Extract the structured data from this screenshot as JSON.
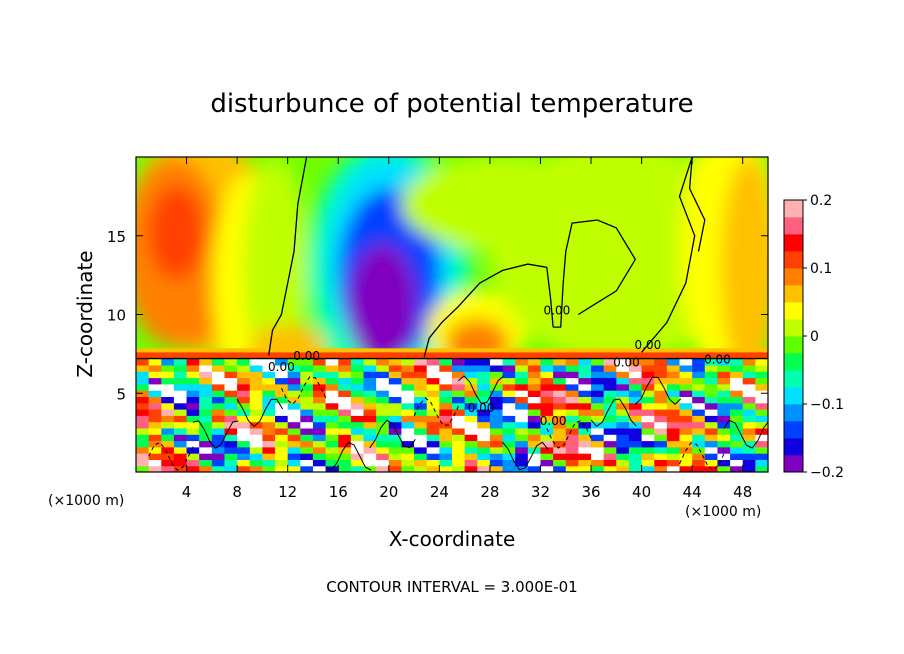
{
  "chart_data": {
    "type": "heatmap",
    "title": "disturbunce of potential temperature",
    "xlabel": "X-coordinate",
    "ylabel": "Z-coordinate",
    "xunit": "(×1000 m)",
    "xlim": [
      0,
      50
    ],
    "ylim": [
      0,
      20
    ],
    "xticks": [
      4,
      8,
      12,
      16,
      20,
      24,
      28,
      32,
      36,
      40,
      44,
      48
    ],
    "xtick_labels": [
      "4",
      "8",
      "12",
      "16",
      "20",
      "24",
      "28",
      "32",
      "36",
      "40",
      "44",
      "48"
    ],
    "yticks": [
      5,
      10,
      15
    ],
    "ytick_labels": [
      "5",
      "10",
      "15"
    ],
    "footer": "CONTOUR INTERVAL = 3.000E-01",
    "colorbar": {
      "min": -0.2,
      "max": 0.2,
      "ticks": [
        0.2,
        0.1,
        0,
        -0.1,
        -0.2
      ],
      "tick_labels": [
        "0.2",
        "0.1",
        "0",
        "−0.1",
        "−0.2"
      ],
      "colors": [
        "#8000c0",
        "#1000e0",
        "#0040ff",
        "#0090ff",
        "#00e0ff",
        "#00ffb0",
        "#00ff50",
        "#60ff00",
        "#c0ff00",
        "#ffff00",
        "#ffc000",
        "#ff8000",
        "#ff4000",
        "#ff0000",
        "#ff6080",
        "#ffb0b0"
      ]
    },
    "contour_labels": [
      {
        "text": "0.00",
        "x": 11.5,
        "z": 6.4
      },
      {
        "text": "0.00",
        "x": 13.5,
        "z": 7.1
      },
      {
        "text": "0.00",
        "x": 27.3,
        "z": 3.8
      },
      {
        "text": "0.00",
        "x": 33.0,
        "z": 3.0
      },
      {
        "text": "0.00",
        "x": 33.3,
        "z": 10.0
      },
      {
        "text": "0.00",
        "x": 38.8,
        "z": 6.7
      },
      {
        "text": "0.00",
        "x": 40.5,
        "z": 7.8
      },
      {
        "text": "0.00",
        "x": 46.0,
        "z": 6.9
      }
    ],
    "color_hint": "Warm (~0.1) disturbance aloft at x 0–10, cold (~-0.2) plume centred near x 20 rising to z 18; weak positive around x 28 z 9; strong mixed ±0.2 structure below z 7."
  }
}
